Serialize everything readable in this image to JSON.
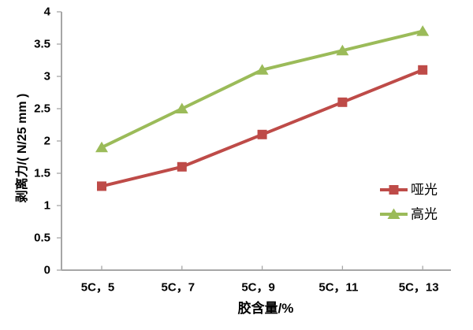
{
  "chart_data": {
    "type": "line",
    "title": "",
    "xlabel": "胶含量/%",
    "ylabel": "剥离力/( N/25 mm )",
    "categories": [
      "5C，5",
      "5C，7",
      "5C，9",
      "5C，11",
      "5C，13"
    ],
    "series": [
      {
        "name": "哑光",
        "values": [
          1.3,
          1.6,
          2.1,
          2.6,
          3.1
        ],
        "color": "#BE4B48",
        "marker": "square"
      },
      {
        "name": "高光",
        "values": [
          1.9,
          2.5,
          3.1,
          3.4,
          3.7
        ],
        "color": "#9BBB59",
        "marker": "triangle"
      }
    ],
    "ylim": [
      0,
      4
    ],
    "y_tick_labels": [
      "0",
      "0.5",
      "1",
      "1.5",
      "2",
      "2.5",
      "3",
      "3.5",
      "4"
    ],
    "grid": false,
    "legend_position": "inside-right",
    "axis_color": "#A6A6A6",
    "text_color": "#000000"
  }
}
